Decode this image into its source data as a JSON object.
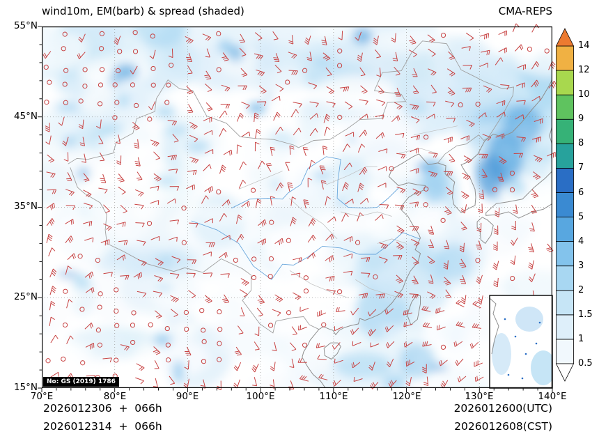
{
  "header": {
    "title": "wind10m, EM(barb) & spread (shaded)",
    "model": "CMA-REPS"
  },
  "axes": {
    "x": [
      "70°E",
      "80°E",
      "90°E",
      "100°E",
      "110°E",
      "120°E",
      "130°E",
      "140°E"
    ],
    "y": [
      "55°N",
      "45°N",
      "35°N",
      "25°N",
      "15°N"
    ]
  },
  "map": {
    "watermark": "No: GS (2019) 1786"
  },
  "footer": {
    "init_line1": "2026012306  +  066h",
    "init_line2": "2026012314  +  066h",
    "valid_line1": "2026012600(UTC)",
    "valid_line2": "2026012608(CST)"
  },
  "chart_data": {
    "type": "heatmap",
    "title": "wind10m, EM(barb) & spread (shaded)",
    "source": "CMA-REPS",
    "region": {
      "lon_range": [
        70,
        140
      ],
      "lat_range": [
        15,
        55
      ]
    },
    "x_axis": {
      "tick_labels": [
        "70°E",
        "80°E",
        "90°E",
        "100°E",
        "110°E",
        "120°E",
        "130°E",
        "140°E"
      ],
      "range": [
        70,
        140
      ],
      "tick_step_deg": 10
    },
    "y_axis": {
      "tick_labels": [
        "15°N",
        "25°N",
        "35°N",
        "45°N",
        "55°N"
      ],
      "range": [
        15,
        55
      ],
      "tick_step_deg": 10
    },
    "colorbar": {
      "labels": [
        "0.5",
        "1",
        "1.5",
        "2",
        "3",
        "4",
        "5",
        "6",
        "7",
        "8",
        "9",
        "10",
        "12",
        "14"
      ],
      "levels": [
        0.5,
        1,
        1.5,
        2,
        3,
        4,
        5,
        6,
        7,
        8,
        9,
        10,
        12,
        14
      ],
      "band_colors": [
        "#f1f8fd",
        "#deeffa",
        "#c6e5f6",
        "#a8d7f2",
        "#83c3ec",
        "#58a7e0",
        "#3a8ad2",
        "#2a6ec5",
        "#27a29c",
        "#36b277",
        "#5fc35f",
        "#a8d84e",
        "#f0b143"
      ],
      "over_color": "#ec7a30",
      "under_color": "#ffffff"
    },
    "wind": {
      "barb_color": "#c84343",
      "calm_symbol": "open circle",
      "note": "ensemble-mean 10 m wind barbs; open red circles denote calm; shaded ensemble spread mostly 0.5-4, larger over seas and northern latitudes"
    },
    "grid": {
      "lon_step_deg": 10,
      "lat_step_deg": 10,
      "style": "dotted"
    },
    "inset": {
      "name": "South China Sea inset"
    },
    "annotations": {
      "badge": "No: GS (2019) 1786",
      "init_times": [
        "2026012306  +  066h",
        "2026012314  +  066h"
      ],
      "valid_times": [
        "2026012600(UTC)",
        "2026012608(CST)"
      ]
    }
  }
}
